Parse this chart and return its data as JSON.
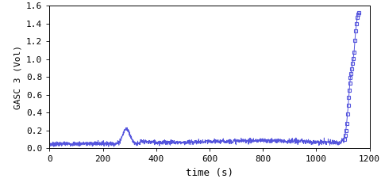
{
  "title": "",
  "xlabel": "time (s)",
  "ylabel": "GASC 3 (Vol)",
  "xlim": [
    0,
    1200
  ],
  "ylim": [
    0,
    1.6
  ],
  "xticks": [
    0,
    200,
    400,
    600,
    800,
    1000,
    1200
  ],
  "yticks": [
    0,
    0.2,
    0.4,
    0.6,
    0.8,
    1.0,
    1.2,
    1.4,
    1.6
  ],
  "line_color": "#5555dd",
  "marker_color": "#5555dd",
  "bg_color": "#ffffff",
  "font_family": "monospace",
  "xlabel_fontsize": 9,
  "ylabel_fontsize": 8,
  "tick_fontsize": 8
}
